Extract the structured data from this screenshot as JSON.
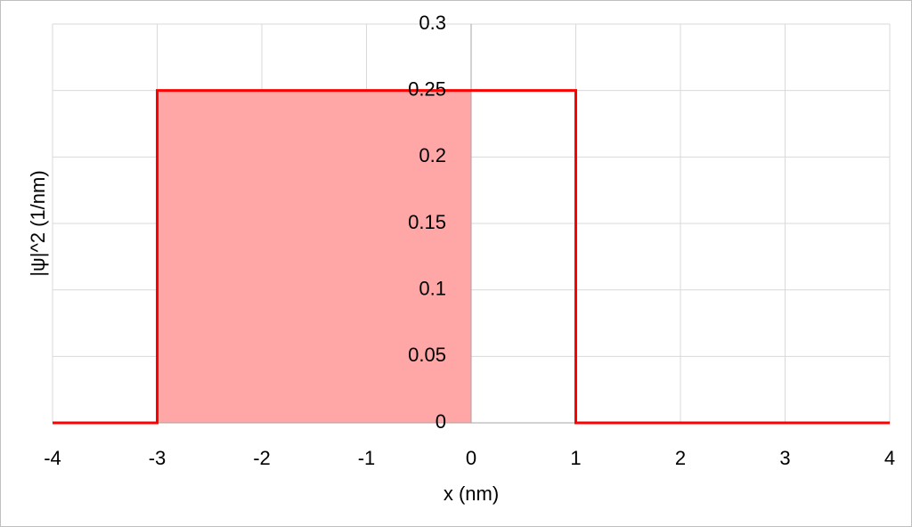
{
  "chart_data": {
    "type": "line",
    "x_label": "x (nm)",
    "y_label": "|ψ|^2 (1/nm)",
    "series": [
      {
        "color": "#ff0000",
        "x": [
          -4,
          -3,
          -3,
          1,
          1,
          4
        ],
        "values": [
          0,
          0,
          0.25,
          0.25,
          0,
          0
        ]
      },
      {
        "color": "#ffa6a6",
        "fill": true,
        "x": [
          -3,
          0
        ],
        "values": [
          0.25,
          0.25
        ]
      }
    ],
    "xlim": [
      -4,
      4
    ],
    "xticks": [
      -4,
      -3,
      -2,
      -1,
      0,
      1,
      2,
      3,
      4
    ],
    "ylim": [
      0,
      0.3
    ],
    "yticks": [
      0,
      0.05,
      0.1,
      0.15,
      0.2,
      0.25,
      0.3
    ],
    "grid": true
  }
}
